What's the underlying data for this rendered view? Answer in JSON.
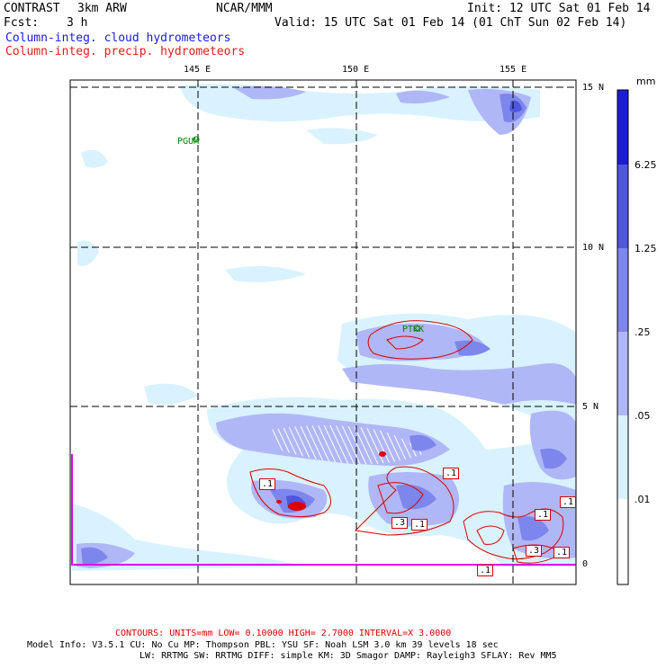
{
  "header": {
    "model": "CONTRAST",
    "resolution": "3km ARW",
    "org": "NCAR/MMM",
    "init": "Init: 12 UTC Sat 01 Feb 14",
    "fcst_label": "Fcst:",
    "fcst_value": "3 h",
    "valid": "Valid: 15 UTC Sat 01 Feb 14 (01 ChT Sun 02 Feb 14)",
    "field1": "Column-integ. cloud hydrometeors",
    "field2": "Column-integ. precip. hydrometeors"
  },
  "colors": {
    "field1": "#1a1ae6",
    "field2": "#e61a1a",
    "fill_lev1": "#d9f2ff",
    "fill_lev2": "#b0b7f6",
    "fill_lev3": "#7d86ec",
    "fill_lev4": "#4f56e0",
    "fill_lev5": "#1c1cd8",
    "contour": "#dd0000",
    "boundary": "#e000e0",
    "city": "#008000"
  },
  "axes": {
    "lon_labels": [
      "145 E",
      "150 E",
      "155 E"
    ],
    "lat_labels": [
      "15 N",
      "10 N",
      "5 N",
      "0"
    ]
  },
  "legend": {
    "unit": "mm",
    "levels": [
      "6.25",
      "1.25",
      ".25",
      ".05",
      ".01"
    ]
  },
  "places": {
    "pgum": "PGUM",
    "ptkk": "PTKK"
  },
  "contour_labels": [
    ".1",
    ".1",
    ".3",
    ".1",
    ".1",
    ".1",
    ".3",
    ".1",
    ".1",
    ".1"
  ],
  "footer": {
    "contours": "CONTOURS:  UNITS=mm  LOW= 0.10000     HIGH=  2.7000     INTERVAL=X  3.0000",
    "line1": "Model Info: V3.5.1    CU: No Cu    MP: Thompson    PBL: YSU      SF: Noah LSM     3.0 km  39 levels   18 sec",
    "line2": "LW: RRTMG     SW: RRTMG  DIFF: simple KM: 3D Smagor DAMP: Rayleigh3  SFLAY: Rev MM5"
  }
}
